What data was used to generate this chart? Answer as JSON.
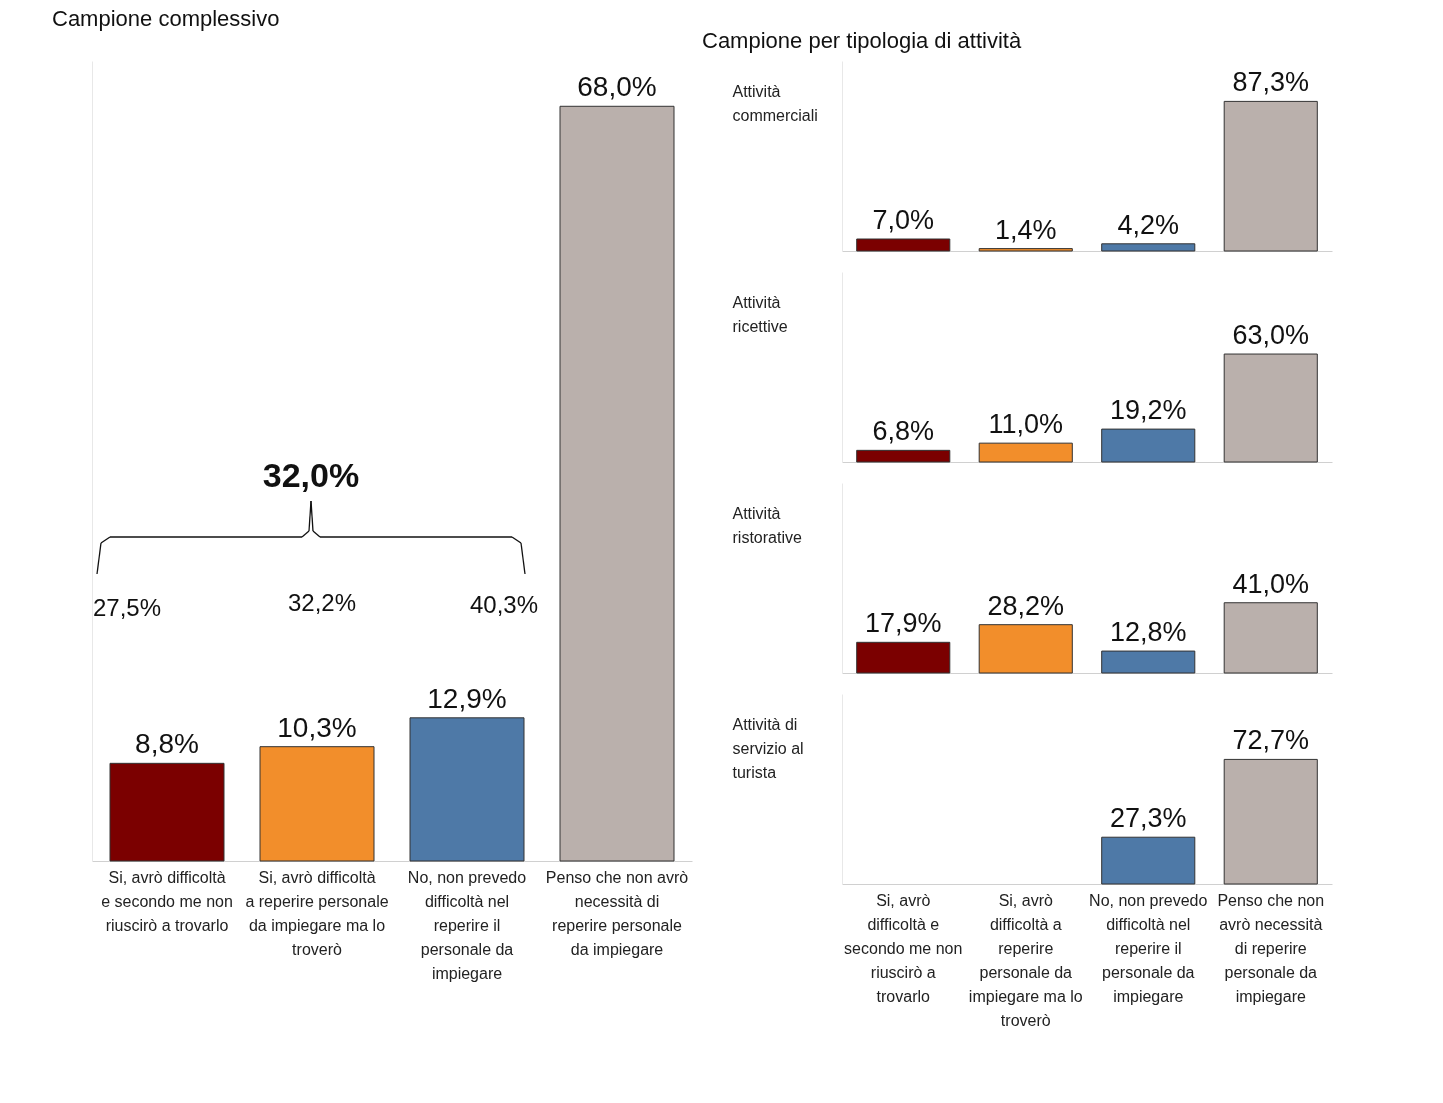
{
  "chart_data": [
    {
      "type": "bar",
      "title": "Campione complessivo",
      "categories": [
        "Si, avrò difficoltà e secondo me non riuscirò a trovarlo",
        "Si, avrò difficoltà a reperire personale da impiegare ma lo troverò",
        "No, non prevedo difficoltà nel reperire il personale da impiegare",
        "Penso che non avrò necessità di reperire personale da impiegare"
      ],
      "values": [
        8.8,
        10.3,
        12.9,
        68.0
      ],
      "colors": [
        "#7b0000",
        "#f28e2b",
        "#4e79a7",
        "#bab0ac"
      ],
      "value_labels": [
        "8,8%",
        "10,3%",
        "12,9%",
        "68,0%"
      ],
      "annotations": [
        "32,0%",
        "27,5%",
        "32,2%",
        "40,3%"
      ],
      "tick_labels": "x"
    },
    {
      "type": "bar",
      "title": "Campione per tipologia di attività",
      "ylabel": "Attività commerciali",
      "values": [
        7.0,
        1.4,
        4.2,
        87.3
      ],
      "colors": [
        "#7b0000",
        "#f28e2b",
        "#4e79a7",
        "#bab0ac"
      ],
      "value_labels": [
        "7,0%",
        "1,4%",
        "4,2%",
        "87,3%"
      ],
      "tick_labels": false
    },
    {
      "type": "bar",
      "ylabel": "Attività ricettive",
      "values": [
        6.8,
        11.0,
        19.2,
        63.0
      ],
      "colors": [
        "#7b0000",
        "#f28e2b",
        "#4e79a7",
        "#bab0ac"
      ],
      "value_labels": [
        "6,8%",
        "11,0%",
        "19,2%",
        "63,0%"
      ],
      "tick_labels": false
    },
    {
      "type": "bar",
      "ylabel": "Attività ristorative",
      "values": [
        17.9,
        28.2,
        12.8,
        41.0
      ],
      "colors": [
        "#7b0000",
        "#f28e2b",
        "#4e79a7",
        "#bab0ac"
      ],
      "value_labels": [
        "17,9%",
        "28,2%",
        "12,8%",
        "41,0%"
      ],
      "tick_labels": false
    },
    {
      "type": "bar",
      "ylabel": "Attività di servizio al turista",
      "categories": [
        "Si, avrò difficoltà e secondo me non riuscirò a trovarlo",
        "Si, avrò difficoltà a reperire personale da impiegare ma lo troverò",
        "No, non prevedo difficoltà nel reperire il personale da impiegare",
        "Penso che non avrò necessità di reperire personale da impiegare"
      ],
      "values": [
        null,
        null,
        27.3,
        72.7
      ],
      "colors": [
        "#7b0000",
        "#f28e2b",
        "#4e79a7",
        "#bab0ac"
      ],
      "value_labels": [
        null,
        null,
        "27,3%",
        "72,7%"
      ],
      "tick_labels": "x"
    }
  ]
}
